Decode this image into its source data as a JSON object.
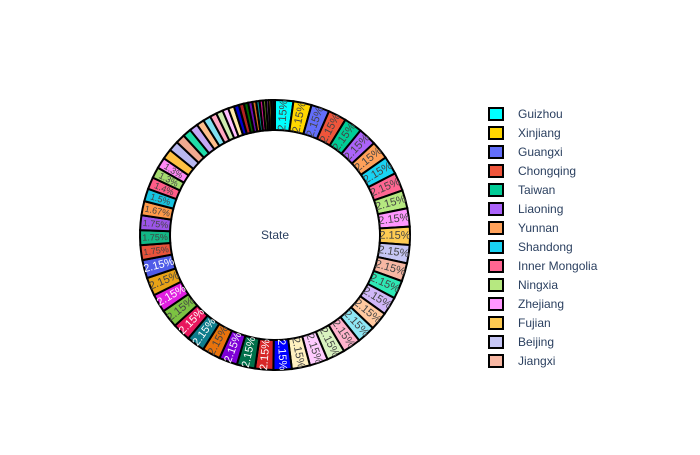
{
  "chart_data": {
    "type": "pie",
    "hole": true,
    "center_label": "State",
    "legend_position": "right",
    "slices": [
      {
        "label": "Guizhou",
        "percent": 2.15,
        "color": "#00FFFF"
      },
      {
        "label": "Xinjiang",
        "percent": 2.15,
        "color": "#FFD700"
      },
      {
        "label": "Guangxi",
        "percent": 2.15,
        "color": "#636EFA"
      },
      {
        "label": "Chongqing",
        "percent": 2.15,
        "color": "#EF553B"
      },
      {
        "label": "Taiwan",
        "percent": 2.15,
        "color": "#00CC96"
      },
      {
        "label": "Liaoning",
        "percent": 2.15,
        "color": "#AB63FA"
      },
      {
        "label": "Yunnan",
        "percent": 2.15,
        "color": "#FFA15A"
      },
      {
        "label": "Shandong",
        "percent": 2.15,
        "color": "#19D3F3"
      },
      {
        "label": "Inner Mongolia",
        "percent": 2.15,
        "color": "#FF6692"
      },
      {
        "label": "Ningxia",
        "percent": 2.15,
        "color": "#B6E880"
      },
      {
        "label": "Zhejiang",
        "percent": 2.15,
        "color": "#FF97FF"
      },
      {
        "label": "Fujian",
        "percent": 2.15,
        "color": "#FECB52"
      },
      {
        "label": "Beijing",
        "percent": 2.15,
        "color": "#C6C6F5"
      },
      {
        "label": "Jiangxi",
        "percent": 2.15,
        "color": "#F7B7A3"
      },
      {
        "label": "",
        "percent": 2.15,
        "color": "#2EE8B5"
      },
      {
        "label": "",
        "percent": 2.15,
        "color": "#D0B8F8"
      },
      {
        "label": "",
        "percent": 2.15,
        "color": "#FFC9A0"
      },
      {
        "label": "",
        "percent": 2.15,
        "color": "#8FE8F5"
      },
      {
        "label": "",
        "percent": 2.15,
        "color": "#FFB3CC"
      },
      {
        "label": "",
        "percent": 2.15,
        "color": "#D9F2C0"
      },
      {
        "label": "",
        "percent": 2.15,
        "color": "#FFCCFF"
      },
      {
        "label": "",
        "percent": 2.15,
        "color": "#FFF0C0"
      },
      {
        "label": "",
        "percent": 2.15,
        "color": "#0000FF"
      },
      {
        "label": "",
        "percent": 2.15,
        "color": "#D62728"
      },
      {
        "label": "",
        "percent": 2.15,
        "color": "#00704A"
      },
      {
        "label": "",
        "percent": 2.15,
        "color": "#7E00D6"
      },
      {
        "label": "",
        "percent": 2.15,
        "color": "#E8730C"
      },
      {
        "label": "",
        "percent": 2.15,
        "color": "#0E7C8B"
      },
      {
        "label": "",
        "percent": 2.15,
        "color": "#E8175D"
      },
      {
        "label": "",
        "percent": 2.15,
        "color": "#7CC242"
      },
      {
        "label": "",
        "percent": 2.15,
        "color": "#E020E0"
      },
      {
        "label": "",
        "percent": 2.15,
        "color": "#E8A317"
      },
      {
        "label": "",
        "percent": 2.15,
        "color": "#4F5BE8"
      },
      {
        "label": "",
        "percent": 1.75,
        "color": "#E8533B"
      },
      {
        "label": "",
        "percent": 1.75,
        "color": "#12B886"
      },
      {
        "label": "",
        "percent": 1.75,
        "color": "#9B55E8"
      },
      {
        "label": "",
        "percent": 1.67,
        "color": "#FF9A4A"
      },
      {
        "label": "",
        "percent": 1.5,
        "color": "#17C3E0"
      },
      {
        "label": "",
        "percent": 1.4,
        "color": "#FF5C87"
      },
      {
        "label": "",
        "percent": 1.3,
        "color": "#A6DB70"
      },
      {
        "label": "",
        "percent": 1.3,
        "color": "#FF88F5"
      },
      {
        "label": "",
        "percent": 1.2,
        "color": "#FEC042"
      },
      {
        "label": "",
        "percent": 1.2,
        "color": "#B8B8F0"
      },
      {
        "label": "",
        "percent": 1.1,
        "color": "#F0A890"
      },
      {
        "label": "",
        "percent": 1.0,
        "color": "#20DCA8"
      },
      {
        "label": "",
        "percent": 1.0,
        "color": "#C5A8F5"
      },
      {
        "label": "",
        "percent": 0.9,
        "color": "#FFBE8C"
      },
      {
        "label": "",
        "percent": 0.9,
        "color": "#7FE0F0"
      },
      {
        "label": "",
        "percent": 0.8,
        "color": "#FFA8C2"
      },
      {
        "label": "",
        "percent": 0.8,
        "color": "#CDEBB0"
      },
      {
        "label": "",
        "percent": 0.7,
        "color": "#FFBFFF"
      },
      {
        "label": "",
        "percent": 0.7,
        "color": "#FFE8A8"
      },
      {
        "label": "",
        "percent": 0.6,
        "color": "#0000CC"
      },
      {
        "label": "",
        "percent": 0.6,
        "color": "#B22222"
      },
      {
        "label": "",
        "percent": 0.5,
        "color": "#006400"
      },
      {
        "label": "",
        "percent": 0.5,
        "color": "#6A0DAD"
      },
      {
        "label": "",
        "percent": 0.45,
        "color": "#D2691E"
      },
      {
        "label": "",
        "percent": 0.4,
        "color": "#008B8B"
      },
      {
        "label": "",
        "percent": 0.4,
        "color": "#C71585"
      },
      {
        "label": "",
        "percent": 0.35,
        "color": "#6B8E23"
      },
      {
        "label": "",
        "percent": 0.3,
        "color": "#BA55D3"
      },
      {
        "label": "",
        "percent": 0.3,
        "color": "#DAA520"
      },
      {
        "label": "",
        "percent": 0.25,
        "color": "#4169E1"
      },
      {
        "label": "",
        "percent": 0.2,
        "color": "#CD5C5C"
      }
    ],
    "legend_entries": [
      "Guizhou",
      "Xinjiang",
      "Guangxi",
      "Chongqing",
      "Taiwan",
      "Liaoning",
      "Yunnan",
      "Shandong",
      "Inner Mongolia",
      "Ningxia",
      "Zhejiang",
      "Fujian",
      "Beijing",
      "Jiangxi"
    ]
  }
}
